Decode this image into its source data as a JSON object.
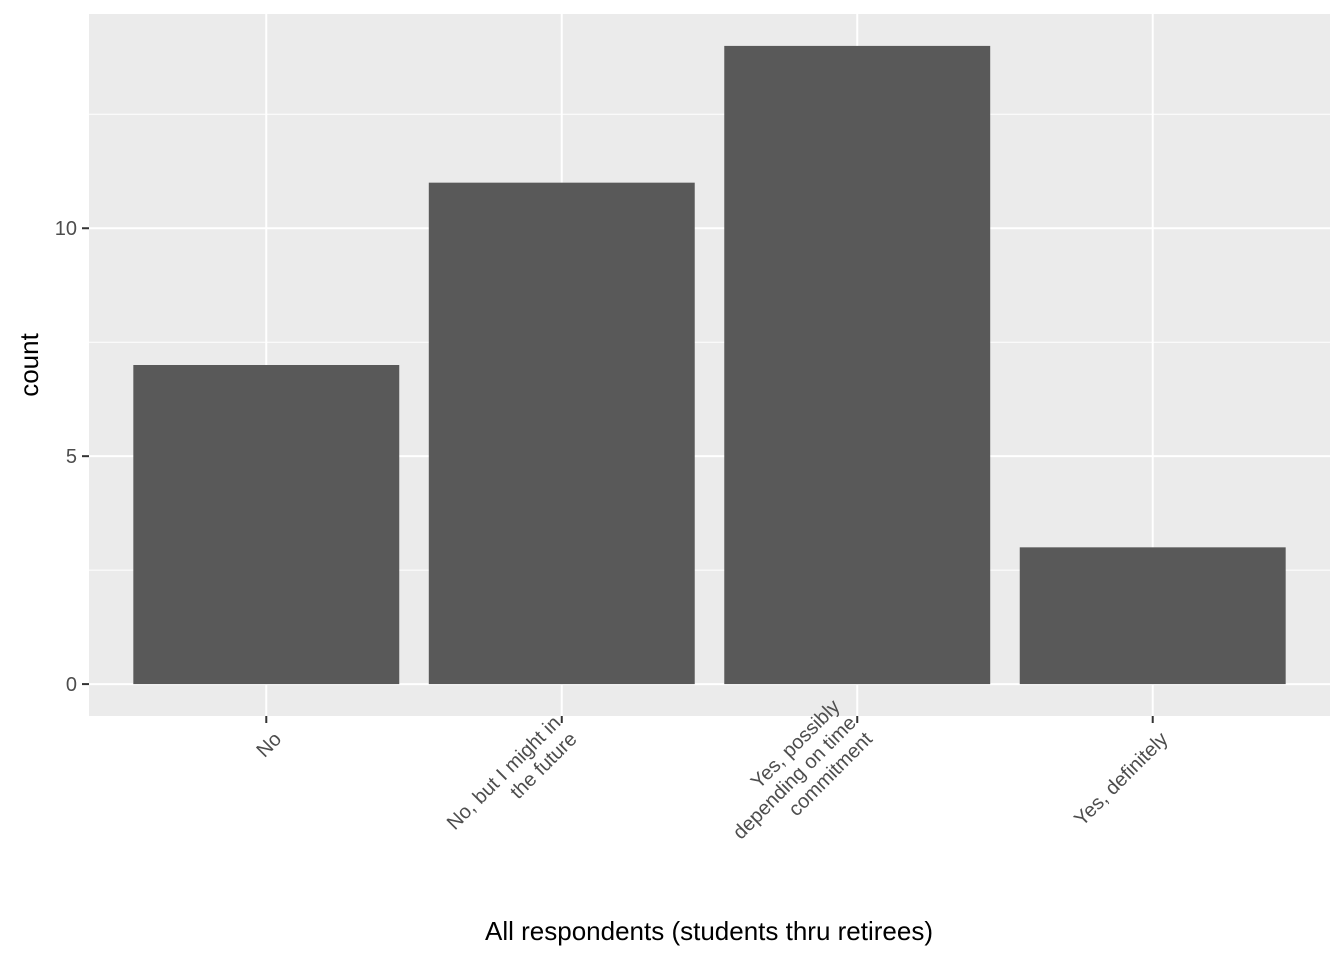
{
  "chart_data": {
    "type": "bar",
    "categories": [
      [
        "No"
      ],
      [
        "No, but I might in",
        "the future"
      ],
      [
        "Yes, possibly",
        "depending on time",
        "commitment"
      ],
      [
        "Yes, definitely"
      ]
    ],
    "values": [
      7,
      11,
      14,
      3
    ],
    "xlabel": "All respondents (students thru retirees)",
    "ylabel": "count",
    "ylim": [
      -0.7,
      14.7
    ],
    "yticks": [
      0,
      5,
      10
    ],
    "grid": true,
    "theme": {
      "panel_background": "#ebebeb",
      "grid_color": "#ffffff",
      "bar_color": "#595959",
      "tick_color": "#333333",
      "tick_label_color": "#4d4d4d"
    }
  }
}
